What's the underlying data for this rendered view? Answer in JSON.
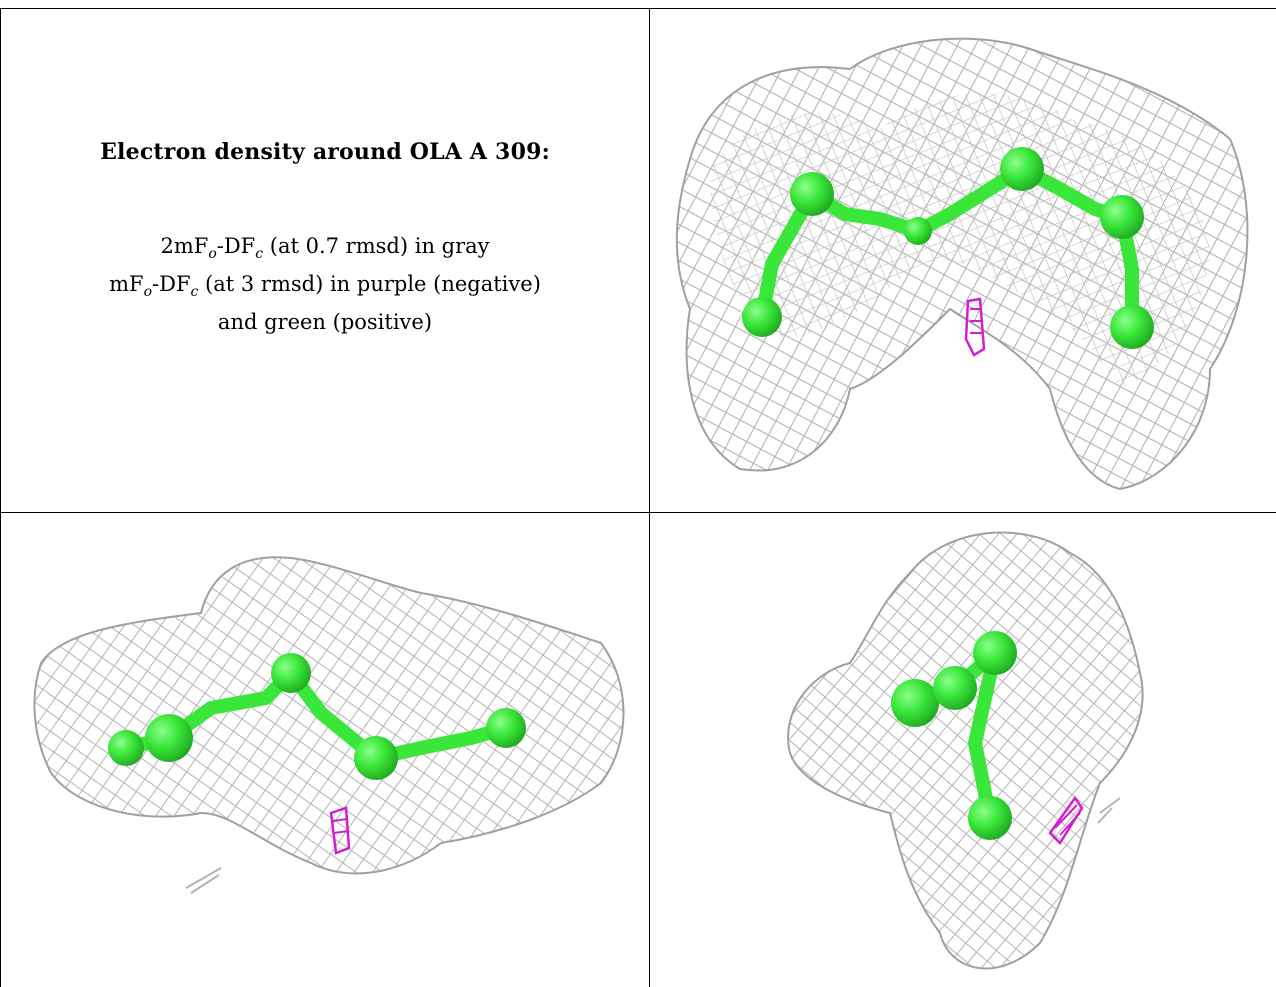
{
  "panel": {
    "title": "Electron density around OLA A 309:",
    "legend": {
      "line1": {
        "prefix": "2mF",
        "sub1": "o",
        "mid": "-DF",
        "sub2": "c",
        "suffix": " (at 0.7 rmsd) in gray"
      },
      "line2": {
        "prefix": "mF",
        "sub1": "o",
        "mid": "-DF",
        "sub2": "c",
        "suffix": " (at 3 rmsd) in purple (negative)"
      },
      "line3": "and green (positive)"
    }
  },
  "colors": {
    "mesh": "#b4b4b4",
    "ligand": "#39e639",
    "negative_density": "#d21ed2",
    "border": "#000000"
  },
  "views": [
    {
      "name": "view-top-right"
    },
    {
      "name": "view-bottom-left"
    },
    {
      "name": "view-bottom-right"
    }
  ]
}
